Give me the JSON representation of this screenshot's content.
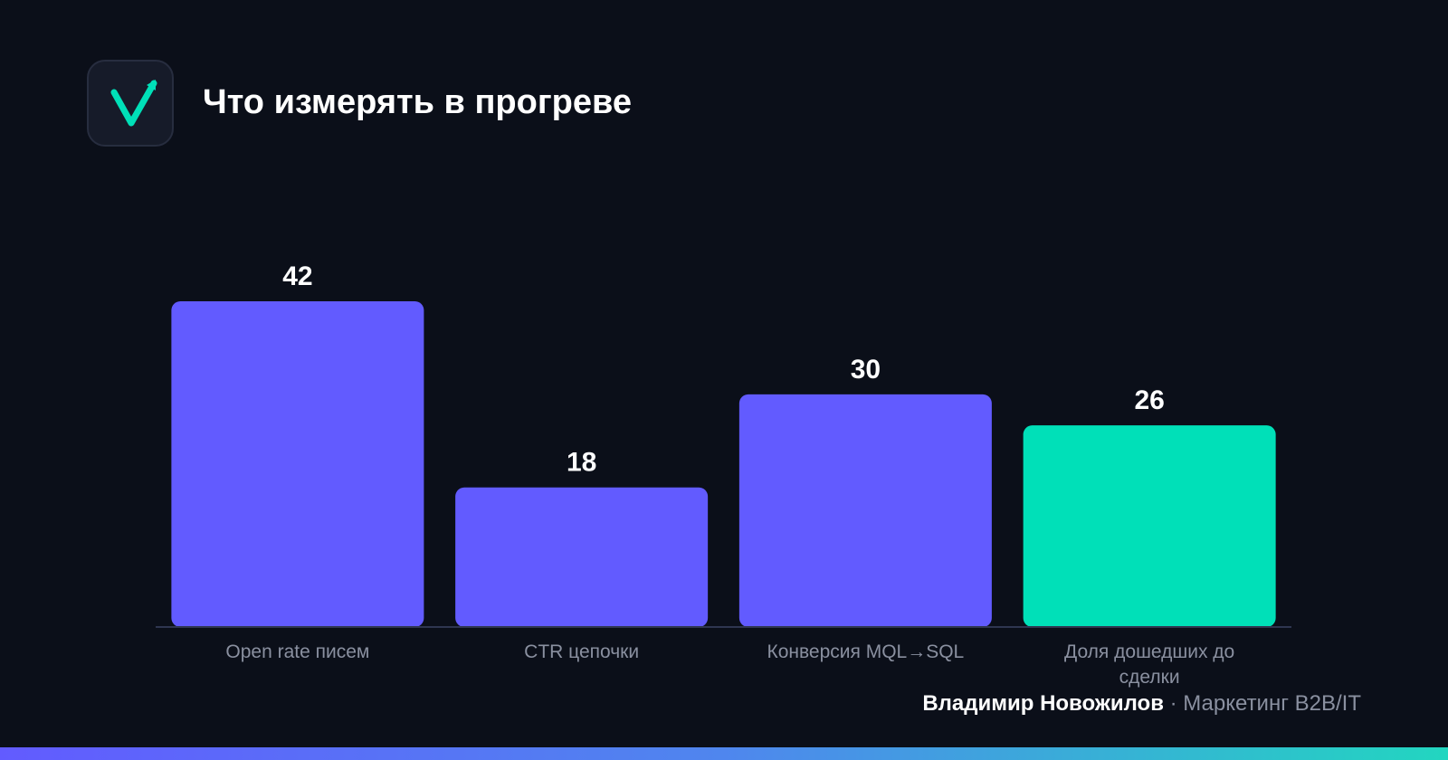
{
  "header": {
    "title": "Что измерять в прогреве",
    "logo_icon": "checkmark-up-arrow-icon"
  },
  "chart_data": {
    "type": "bar",
    "title": "Что измерять в прогреве",
    "categories": [
      "Open rate писем",
      "CTR цепочки",
      "Конверсия MQL→SQL",
      "Доля дошедших до сделки"
    ],
    "values": [
      42,
      18,
      30,
      26
    ],
    "colors": [
      "#625bff",
      "#625bff",
      "#625bff",
      "#00e0b8"
    ],
    "xlabel": "",
    "ylabel": "",
    "ylim": [
      0,
      42
    ],
    "grid": false,
    "legend": "none"
  },
  "footer": {
    "author": "Владимир Новожилов",
    "role": "· Маркетинг B2B/IT"
  },
  "colors": {
    "background": "#0b0f19",
    "primary_bar": "#625bff",
    "accent_bar": "#00e0b8",
    "muted_text": "#8a90a0"
  }
}
